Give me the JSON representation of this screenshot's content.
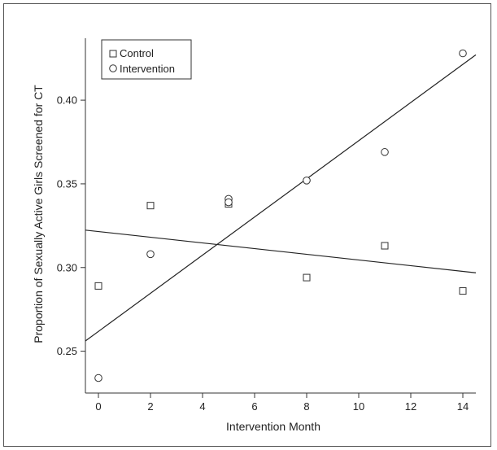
{
  "chart_data": {
    "type": "scatter",
    "xlabel": "Intervention Month",
    "ylabel": "Proportion of Sexually Active Girls Screened for CT",
    "xlim": [
      -0.5,
      14.5
    ],
    "ylim": [
      0.225,
      0.437
    ],
    "xticks": [
      0,
      2,
      4,
      6,
      8,
      10,
      12,
      14
    ],
    "yticks": [
      0.25,
      0.3,
      0.35,
      0.4
    ],
    "ytick_labels": [
      "0.25",
      "0.30",
      "0.35",
      "0.40"
    ],
    "grid": false,
    "legend_position": "top-left",
    "series": [
      {
        "name": "Control",
        "marker": "square",
        "x": [
          0,
          2,
          5,
          8,
          11,
          14
        ],
        "y": [
          0.289,
          0.337,
          0.338,
          0.294,
          0.313,
          0.286
        ],
        "fit": {
          "intercept": 0.3215,
          "slope": -0.0017
        }
      },
      {
        "name": "Intervention",
        "marker": "circle",
        "x": [
          0,
          2,
          5,
          5,
          8,
          11,
          14
        ],
        "y": [
          0.234,
          0.308,
          0.341,
          0.339,
          0.352,
          0.369,
          0.428
        ],
        "fit": {
          "intercept": 0.2618,
          "slope": 0.0114
        }
      }
    ]
  }
}
